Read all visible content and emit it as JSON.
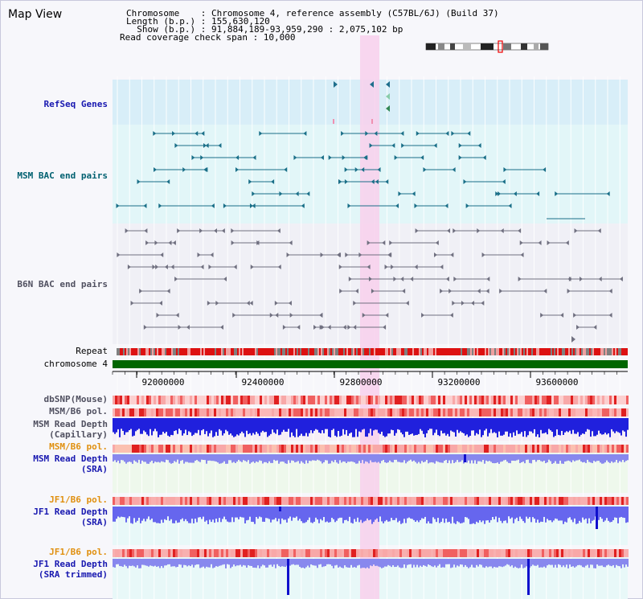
{
  "app": {
    "title": "Map View"
  },
  "header": {
    "line1": "Chromosome    : Chromosome 4, reference assembly (C57BL/6J) (Build 37)",
    "line2": "Length (b.p.) : 155,630,120",
    "line3": "  Show (b.p.) : 91,884,189-93,959,290 : 2,075,102 bp",
    "line4": "Read coverage check span : 10,000"
  },
  "tracks": {
    "refseq": {
      "label": "RefSeq Genes",
      "color": "#1818b0"
    },
    "msm_bac": {
      "label": "MSM BAC end pairs",
      "color": "#006070"
    },
    "b6n_bac": {
      "label": "B6N BAC end pairs",
      "color": "#505060"
    },
    "repeat": {
      "label": "Repeat"
    },
    "chromosome": {
      "label": "chromosome 4",
      "color": "#006600"
    },
    "dbsnp": {
      "label": "dbSNP(Mouse)"
    },
    "msm_b6_pol": {
      "label": "MSM/B6 pol."
    },
    "msm_cap_1": {
      "label": "MSM Read Depth"
    },
    "msm_cap_2": {
      "label": "(Capillary)"
    },
    "msm_b6_pol2": {
      "label": "MSM/B6 pol.",
      "color": "#e09010"
    },
    "msm_sra_1": {
      "label": "MSM Read Depth"
    },
    "msm_sra_2": {
      "label": "(SRA)"
    },
    "jf1_b6_pol": {
      "label": "JF1/B6 pol.",
      "color": "#e09010"
    },
    "jf1_sra_1": {
      "label": "JF1 Read Depth"
    },
    "jf1_sra_2": {
      "label": "(SRA)"
    },
    "jf1_b6_pol2": {
      "label": "JF1/B6 pol.",
      "color": "#e09010"
    },
    "jf1_trim_1": {
      "label": "JF1 Read Depth"
    },
    "jf1_trim_2": {
      "label": "(SRA trimmed)"
    }
  },
  "axis": {
    "ticks": [
      "92000000",
      "92400000",
      "92800000",
      "93200000",
      "93600000"
    ]
  },
  "colors": {
    "highlight": "#f8d0ec",
    "refseq_bg": "#d8eef8",
    "msm_bg": "#e2f6f8",
    "b6n_bg": "#f0f0f6",
    "lightgreen_bg": "#eef8ec",
    "lightcyan_bg": "#e8f8f8"
  }
}
